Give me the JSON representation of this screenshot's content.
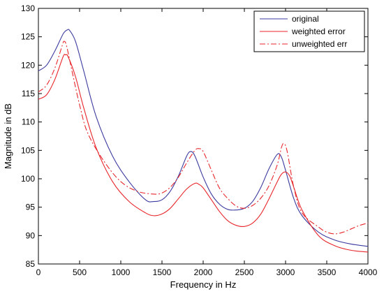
{
  "chart_data": {
    "type": "line",
    "title": "",
    "xlabel": "Frequency in Hz",
    "ylabel": "Magnitude in dB",
    "xlim": [
      0,
      4000
    ],
    "ylim": [
      85,
      130
    ],
    "xticks": [
      0,
      500,
      1000,
      1500,
      2000,
      2500,
      3000,
      3500,
      4000
    ],
    "yticks": [
      85,
      90,
      95,
      100,
      105,
      110,
      115,
      120,
      125,
      130
    ],
    "xtick_labels": [
      "0",
      "500",
      "1000",
      "1500",
      "2000",
      "2500",
      "3000",
      "3500",
      "4000"
    ],
    "ytick_labels": [
      "85",
      "90",
      "95",
      "100",
      "105",
      "110",
      "115",
      "120",
      "125",
      "130"
    ],
    "grid": false,
    "legend_position": "top-right",
    "series": [
      {
        "name": "original",
        "color": "#3b3b9f",
        "style": "solid",
        "x": [
          0,
          100,
          200,
          300,
          350,
          380,
          450,
          550,
          700,
          900,
          1100,
          1300,
          1400,
          1500,
          1600,
          1700,
          1800,
          1850,
          1900,
          2000,
          2100,
          2200,
          2300,
          2400,
          2500,
          2600,
          2700,
          2800,
          2900,
          2950,
          3000,
          3100,
          3200,
          3400,
          3600,
          3800,
          4000
        ],
        "y": [
          119,
          120,
          122.5,
          125.5,
          126.2,
          126.1,
          124.2,
          119,
          111,
          104,
          99.5,
          96.3,
          96,
          96.3,
          97.8,
          100.5,
          104,
          104.8,
          104,
          100.3,
          97.3,
          95.5,
          94.6,
          94.5,
          94.8,
          96,
          98.5,
          101.8,
          104.3,
          103.8,
          101.5,
          96.5,
          93.5,
          90.6,
          89.2,
          88.5,
          88.1
        ]
      },
      {
        "name": "weighted error",
        "color": "#e8262b",
        "style": "solid",
        "x": [
          0,
          100,
          200,
          300,
          330,
          360,
          450,
          550,
          700,
          900,
          1100,
          1300,
          1400,
          1500,
          1600,
          1700,
          1800,
          1900,
          1950,
          2000,
          2100,
          2200,
          2300,
          2400,
          2500,
          2600,
          2700,
          2800,
          2900,
          2950,
          3000,
          3050,
          3100,
          3200,
          3400,
          3600,
          3800,
          4000
        ],
        "y": [
          114,
          114.8,
          117.5,
          121.5,
          121.8,
          121.5,
          118,
          112.5,
          105.5,
          99.5,
          96,
          94,
          93.5,
          93.8,
          94.8,
          96.5,
          98.2,
          99.2,
          99,
          98.4,
          96.3,
          94.2,
          92.6,
          91.8,
          91.6,
          92.2,
          93.8,
          96.5,
          99.5,
          100.8,
          101.2,
          100.5,
          98.5,
          94.5,
          90,
          88.2,
          87.4,
          87.1
        ]
      },
      {
        "name": "unweighted err",
        "color": "#e8262b",
        "style": "dash-dot",
        "x": [
          0,
          100,
          200,
          290,
          310,
          340,
          400,
          500,
          600,
          800,
          1000,
          1200,
          1400,
          1500,
          1600,
          1700,
          1800,
          1900,
          1950,
          2000,
          2100,
          2200,
          2300,
          2400,
          2500,
          2600,
          2700,
          2800,
          2900,
          2950,
          2980,
          3020,
          3100,
          3200,
          3400,
          3500,
          3600,
          3700,
          3800,
          3900,
          4000
        ],
        "y": [
          115.3,
          116.5,
          119.5,
          123.5,
          124.2,
          123.5,
          119.5,
          113,
          108,
          103,
          99.5,
          97.8,
          97.3,
          97.5,
          98.5,
          100.3,
          102.8,
          105,
          105.3,
          104.8,
          101.5,
          98.3,
          96.5,
          95.2,
          94.8,
          95.3,
          96.6,
          98.8,
          102.5,
          105.5,
          106.2,
          104.8,
          98.5,
          94,
          91.5,
          90.6,
          90.3,
          90.6,
          91.2,
          91.8,
          92.2
        ]
      }
    ]
  }
}
